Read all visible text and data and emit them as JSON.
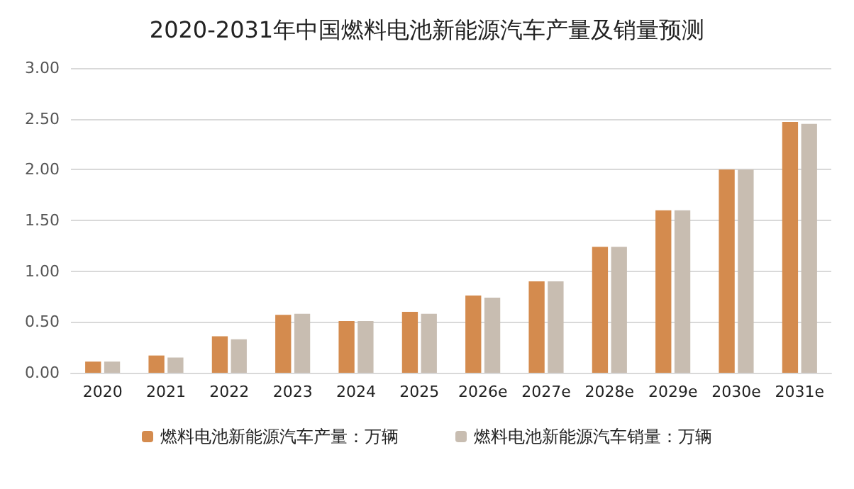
{
  "chart_data": {
    "type": "bar",
    "title": "2020-2031年中国燃料电池新能源汽车产量及销量预测",
    "categories": [
      "2020",
      "2021",
      "2022",
      "2023",
      "2024",
      "2025",
      "2026e",
      "2027e",
      "2028e",
      "2029e",
      "2030e",
      "2031e"
    ],
    "series": [
      {
        "name": "燃料电池新能源汽车产量：万辆",
        "color": "#d48b4e",
        "values": [
          0.11,
          0.17,
          0.36,
          0.57,
          0.51,
          0.6,
          0.76,
          0.9,
          1.24,
          1.6,
          2.0,
          2.47
        ]
      },
      {
        "name": "燃料电池新能源汽车销量：万辆",
        "color": "#c8bdb1",
        "values": [
          0.11,
          0.15,
          0.33,
          0.58,
          0.51,
          0.58,
          0.74,
          0.9,
          1.24,
          1.6,
          2.0,
          2.45
        ]
      }
    ],
    "ylim": [
      0,
      3
    ],
    "yticks": [
      {
        "value": 0,
        "label": "0.00"
      },
      {
        "value": 0.5,
        "label": "0.50"
      },
      {
        "value": 1,
        "label": "1.00"
      },
      {
        "value": 1.5,
        "label": "1.50"
      },
      {
        "value": 2,
        "label": "2.00"
      },
      {
        "value": 2.5,
        "label": "2.50"
      },
      {
        "value": 3,
        "label": "3.00"
      }
    ],
    "grid": "y",
    "legend": "bottom"
  }
}
